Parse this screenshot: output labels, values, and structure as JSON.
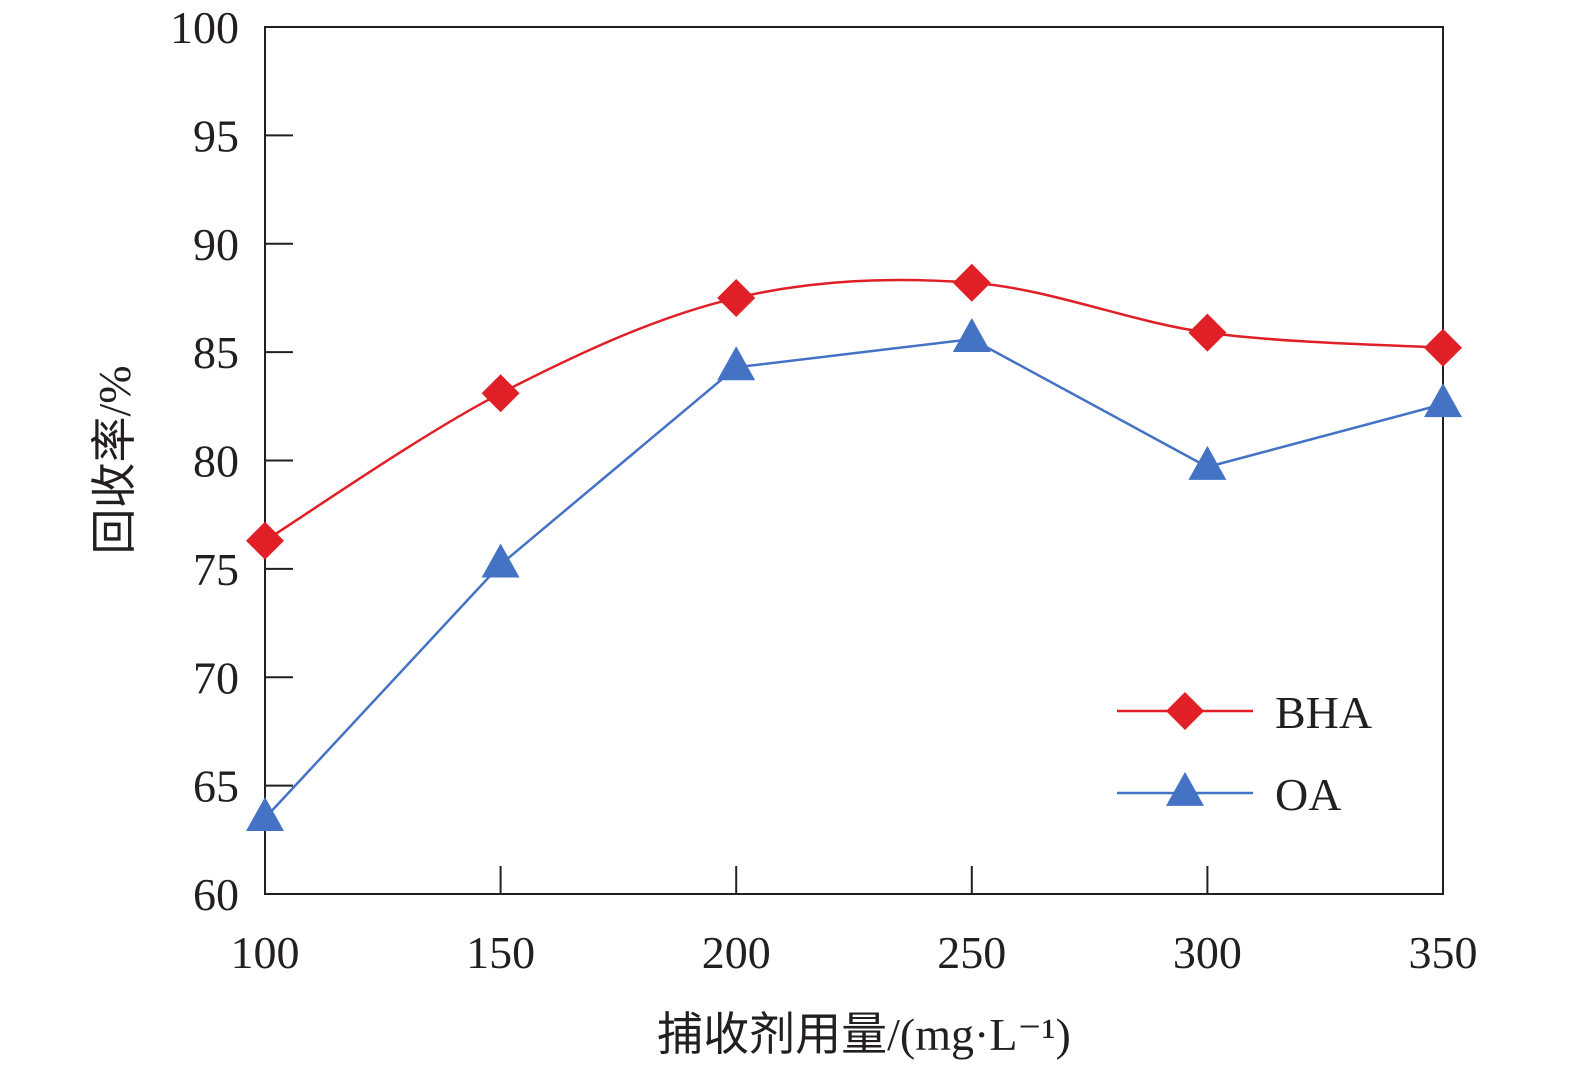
{
  "chart_data": {
    "type": "line",
    "title": "",
    "xlabel": "捕收剂用量/(mg·L⁻¹)",
    "ylabel": "回收率/%",
    "x": [
      100,
      150,
      200,
      250,
      300,
      350
    ],
    "x_ticks": [
      "100",
      "150",
      "200",
      "250",
      "300",
      "350"
    ],
    "xlim": [
      100,
      350
    ],
    "y_ticks": [
      "60",
      "65",
      "70",
      "75",
      "80",
      "85",
      "90",
      "95",
      "100"
    ],
    "ylim": [
      60,
      100
    ],
    "grid": false,
    "legend_position": "lower-right",
    "series": [
      {
        "name": "BHA",
        "values": [
          76.3,
          83.1,
          87.5,
          88.2,
          85.9,
          85.2
        ],
        "color": "#e01f26",
        "marker": "diamond",
        "smooth": true
      },
      {
        "name": "OA",
        "values": [
          63.5,
          75.2,
          84.3,
          85.6,
          79.7,
          82.6
        ],
        "color": "#4472c4",
        "marker": "triangle",
        "smooth": false
      }
    ]
  }
}
